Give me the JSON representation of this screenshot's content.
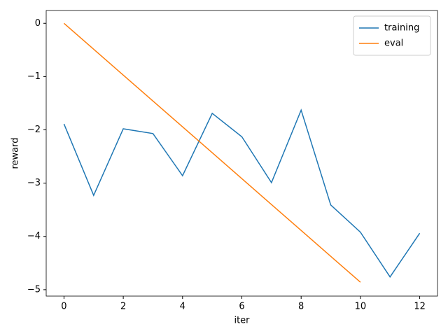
{
  "chart_data": {
    "type": "line",
    "x_label": "iter",
    "y_label": "reward",
    "x": [
      0,
      1,
      2,
      3,
      4,
      5,
      6,
      7,
      8,
      9,
      10,
      11,
      12
    ],
    "series": [
      {
        "name": "training",
        "color": "#1f77b4",
        "values": [
          -1.89,
          -3.23,
          -1.98,
          -2.07,
          -2.86,
          -1.69,
          -2.13,
          -2.99,
          -1.63,
          -3.41,
          -3.92,
          -4.76,
          -3.94
        ]
      },
      {
        "name": "eval",
        "color": "#ff7f0e",
        "values": [
          0,
          -0.486,
          -0.972,
          -1.458,
          -1.944,
          -2.43,
          -2.916,
          -3.402,
          -3.888,
          -4.374,
          -4.86,
          null,
          null
        ]
      }
    ],
    "xlim": [
      -0.6,
      12.6
    ],
    "ylim": [
      -5.12,
      0.24
    ],
    "xticks": [
      0,
      2,
      4,
      6,
      8,
      10,
      12
    ],
    "yticks": [
      {
        "value": -5,
        "label": "−5"
      },
      {
        "value": -4,
        "label": "−4"
      },
      {
        "value": -3,
        "label": "−3"
      },
      {
        "value": -2,
        "label": "−2"
      },
      {
        "value": -1,
        "label": "−1"
      },
      0
    ],
    "legend": "upper right"
  }
}
